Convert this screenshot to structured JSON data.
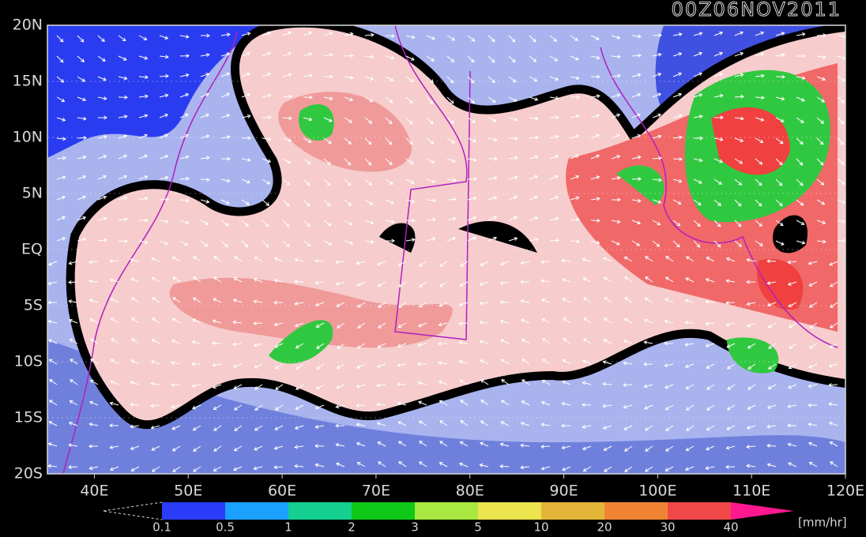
{
  "title": "00Z06NOV2011",
  "lonlim": [
    35,
    120
  ],
  "latlim": [
    -20,
    20
  ],
  "lon_ticks": [
    {
      "value": 40,
      "label": "40E"
    },
    {
      "value": 50,
      "label": "50E"
    },
    {
      "value": 60,
      "label": "60E"
    },
    {
      "value": 70,
      "label": "70E"
    },
    {
      "value": 80,
      "label": "80E"
    },
    {
      "value": 90,
      "label": "90E"
    },
    {
      "value": 100,
      "label": "100E"
    },
    {
      "value": 110,
      "label": "110E"
    },
    {
      "value": 120,
      "label": "120E"
    }
  ],
  "lat_ticks": [
    {
      "value": 20,
      "label": "20N"
    },
    {
      "value": 15,
      "label": "15N"
    },
    {
      "value": 10,
      "label": "10N"
    },
    {
      "value": 5,
      "label": "5N"
    },
    {
      "value": 0,
      "label": "EQ"
    },
    {
      "value": -5,
      "label": "5S"
    },
    {
      "value": -10,
      "label": "10S"
    },
    {
      "value": -15,
      "label": "15S"
    },
    {
      "value": -20,
      "label": "20S"
    }
  ],
  "colorbar": {
    "levels": [
      0.1,
      0.5,
      1,
      2,
      3,
      5,
      10,
      20,
      30,
      40
    ],
    "colors": [
      "#2a3cf8",
      "#1aa0ff",
      "#14d090",
      "#10c818",
      "#a8e840",
      "#ece44c",
      "#e4b438",
      "#f08434",
      "#f04848"
    ],
    "over_color": "#ff1890",
    "unit": "[mm/hr]"
  }
}
